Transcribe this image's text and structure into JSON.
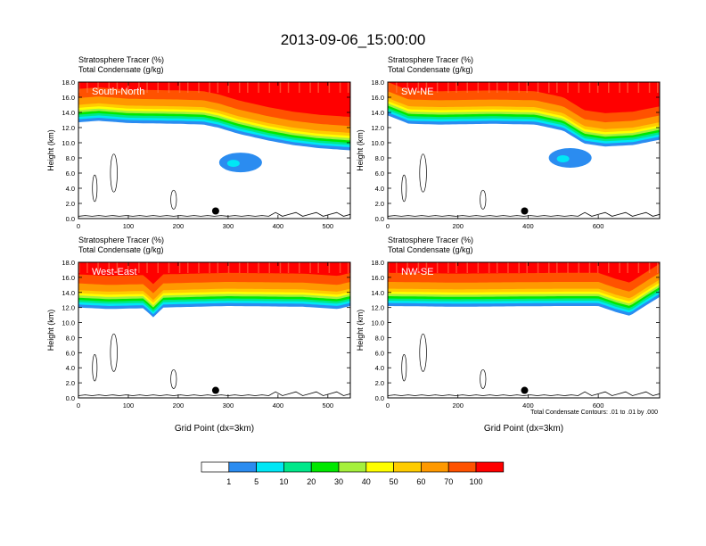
{
  "title": "2013-09-06_15:00:00",
  "colors": {
    "levels": [
      "#ffffff",
      "#2b8cf0",
      "#00e7f5",
      "#00e88a",
      "#00e800",
      "#a5f03c",
      "#ffff00",
      "#ffcc00",
      "#ff9900",
      "#ff5200",
      "#ff0000"
    ]
  },
  "chart_data": [
    {
      "type": "heatmap",
      "panel_label": "South-North",
      "title_line1": "Stratosphere Tracer   (%)",
      "title_line2": "Total Condensate   (g/kg)",
      "ylabel": "Height (km)",
      "xlabel": "",
      "xlim": [
        0,
        545
      ],
      "ylim": [
        0,
        18
      ],
      "x_ticks": [
        "0",
        "100",
        "200",
        "300",
        "400",
        "500"
      ],
      "x_tick_values": [
        0,
        100,
        200,
        300,
        400,
        500
      ],
      "y_ticks": [
        "0.0",
        "2.0",
        "4.0",
        "6.0",
        "8.0",
        "10.0",
        "12.0",
        "14.0",
        "16.0",
        "18.0"
      ],
      "marker": {
        "x": 275,
        "y": 1.0
      },
      "tropopause_points": [
        [
          0,
          13.3
        ],
        [
          40,
          13.5
        ],
        [
          100,
          13.2
        ],
        [
          200,
          13.1
        ],
        [
          250,
          13.0
        ],
        [
          280,
          12.6
        ],
        [
          320,
          11.8
        ],
        [
          380,
          10.9
        ],
        [
          430,
          10.3
        ],
        [
          480,
          9.9
        ],
        [
          545,
          9.6
        ]
      ],
      "cloud": {
        "x": 325,
        "y": 7.4
      }
    },
    {
      "type": "heatmap",
      "panel_label": "SW-NE",
      "title_line1": "Stratosphere Tracer   (%)",
      "title_line2": "Total Condensate   (g/kg)",
      "ylabel": "Height (km)",
      "xlabel": "",
      "xlim": [
        0,
        775
      ],
      "ylim": [
        0,
        18
      ],
      "x_ticks": [
        "0",
        "200",
        "400",
        "600"
      ],
      "x_tick_values": [
        0,
        200,
        400,
        600
      ],
      "y_ticks": [
        "0.0",
        "2.0",
        "4.0",
        "6.0",
        "8.0",
        "10.0",
        "12.0",
        "14.0",
        "16.0",
        "18.0"
      ],
      "marker": {
        "x": 390,
        "y": 1.0
      },
      "tropopause_points": [
        [
          0,
          14.2
        ],
        [
          60,
          13.1
        ],
        [
          150,
          13.0
        ],
        [
          300,
          13.1
        ],
        [
          420,
          13.0
        ],
        [
          500,
          12.2
        ],
        [
          560,
          10.5
        ],
        [
          620,
          10.1
        ],
        [
          700,
          10.3
        ],
        [
          775,
          11.0
        ]
      ],
      "cloud": {
        "x": 520,
        "y": 8.0
      }
    },
    {
      "type": "heatmap",
      "panel_label": "West-East",
      "title_line1": "Stratosphere Tracer   (%)",
      "title_line2": "Total Condensate   (g/kg)",
      "ylabel": "Height (km)",
      "xlabel": "Grid Point (dx=3km)",
      "xlim": [
        0,
        545
      ],
      "ylim": [
        0,
        18
      ],
      "x_ticks": [
        "0",
        "100",
        "200",
        "300",
        "400",
        "500"
      ],
      "x_tick_values": [
        0,
        100,
        200,
        300,
        400,
        500
      ],
      "y_ticks": [
        "0.0",
        "2.0",
        "4.0",
        "6.0",
        "8.0",
        "10.0",
        "12.0",
        "14.0",
        "16.0",
        "18.0"
      ],
      "marker": {
        "x": 275,
        "y": 1.0
      },
      "tropopause_points": [
        [
          0,
          12.6
        ],
        [
          60,
          12.4
        ],
        [
          130,
          12.5
        ],
        [
          150,
          11.3
        ],
        [
          170,
          12.6
        ],
        [
          300,
          12.8
        ],
        [
          450,
          12.7
        ],
        [
          520,
          12.4
        ],
        [
          545,
          12.8
        ]
      ],
      "cloud": null
    },
    {
      "type": "heatmap",
      "panel_label": "NW-SE",
      "title_line1": "Stratosphere Tracer   (%)",
      "title_line2": "Total Condensate   (g/kg)",
      "ylabel": "Height (km)",
      "xlabel": "Grid Point (dx=3km)",
      "xlim": [
        0,
        775
      ],
      "ylim": [
        0,
        18
      ],
      "x_ticks": [
        "0",
        "200",
        "400",
        "600"
      ],
      "x_tick_values": [
        0,
        200,
        400,
        600
      ],
      "y_ticks": [
        "0.0",
        "2.0",
        "4.0",
        "6.0",
        "8.0",
        "10.0",
        "12.0",
        "14.0",
        "16.0",
        "18.0"
      ],
      "marker": {
        "x": 390,
        "y": 1.0
      },
      "tropopause_points": [
        [
          0,
          12.8
        ],
        [
          200,
          12.7
        ],
        [
          500,
          12.8
        ],
        [
          600,
          12.8
        ],
        [
          650,
          12.0
        ],
        [
          690,
          11.5
        ],
        [
          740,
          13.0
        ],
        [
          775,
          14.0
        ]
      ],
      "cloud": null,
      "annotation": "Total Condensate Contours: .01 to .01 by .000"
    }
  ],
  "colorbar": {
    "labels": [
      "1",
      "5",
      "10",
      "20",
      "30",
      "40",
      "50",
      "60",
      "70",
      "100"
    ]
  }
}
